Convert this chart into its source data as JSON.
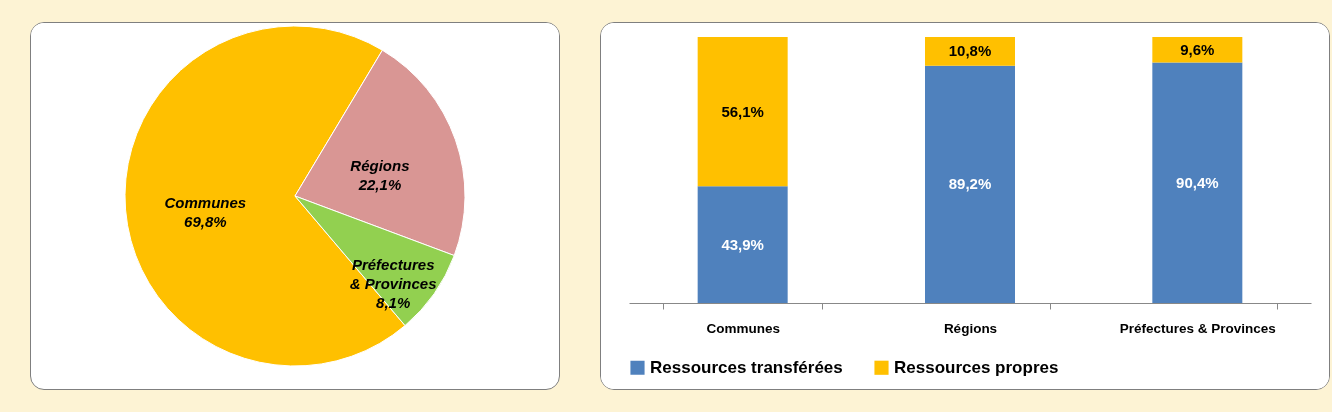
{
  "chart_data": [
    {
      "type": "pie",
      "categories": [
        "Communes",
        "Régions",
        "Préfectures & Provinces"
      ],
      "values": [
        69.8,
        22.1,
        8.1
      ],
      "colors": [
        "#ffc000",
        "#d99694",
        "#92d050"
      ],
      "value_labels": [
        "69,8%",
        "22,1%",
        "8,1%"
      ]
    },
    {
      "type": "bar",
      "stacked": true,
      "categories": [
        "Communes",
        "Régions",
        "Préfectures & Provinces"
      ],
      "legend": "bottom",
      "tick_labels": "x",
      "series": [
        {
          "name": "Ressources transférées",
          "color": "#4f81bd",
          "values": [
            43.9,
            89.2,
            90.4
          ],
          "value_labels": [
            "43,9%",
            "89,2%",
            "90,4%"
          ]
        },
        {
          "name": "Ressources propres",
          "color": "#ffc000",
          "values": [
            56.1,
            10.8,
            9.6
          ],
          "value_labels": [
            "56,1%",
            "10,8%",
            "9,6%"
          ]
        }
      ]
    }
  ]
}
